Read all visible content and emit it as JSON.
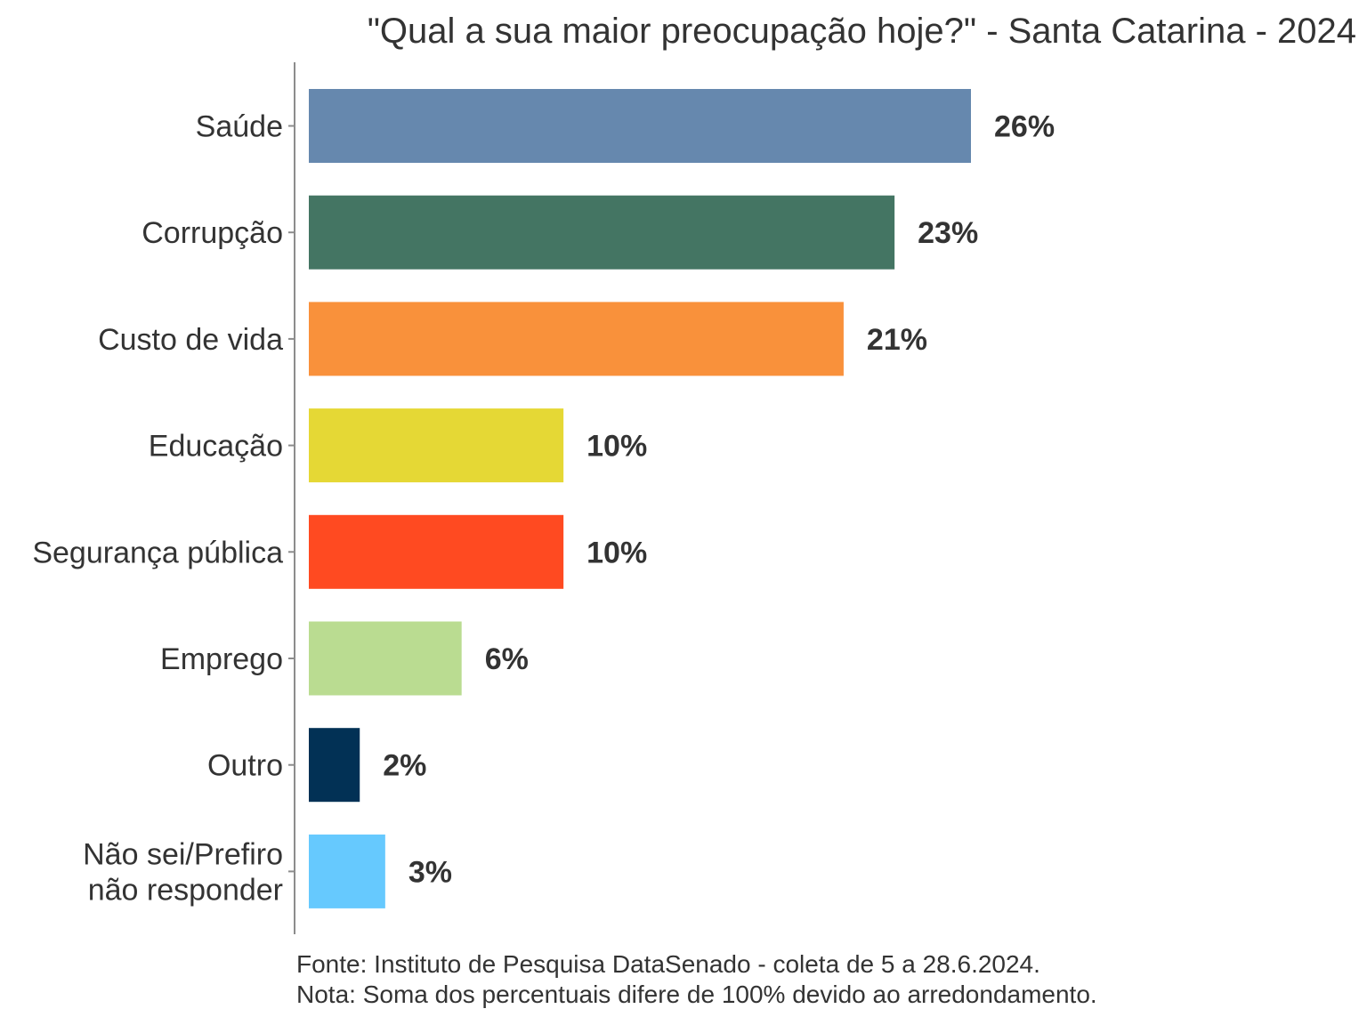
{
  "chart_data": {
    "type": "bar",
    "orientation": "horizontal",
    "title": "\"Qual a sua maior preocupação hoje?\" - Santa Catarina - 2024",
    "xlabel": "",
    "ylabel": "",
    "xlim": [
      0,
      26
    ],
    "grid": false,
    "categories": [
      [
        "Saúde"
      ],
      [
        "Corrupção"
      ],
      [
        "Custo de vida"
      ],
      [
        "Educação"
      ],
      [
        "Segurança pública"
      ],
      [
        "Emprego"
      ],
      [
        "Outro"
      ],
      [
        "Não sei/Prefiro",
        "não responder"
      ]
    ],
    "values": [
      26,
      23,
      21,
      10,
      10,
      6,
      2,
      3
    ],
    "labels": [
      "26%",
      "23%",
      "21%",
      "10%",
      "10%",
      "6%",
      "2%",
      "3%"
    ],
    "colors": [
      "#6688ae",
      "#447563",
      "#f9913b",
      "#e5d835",
      "#ff4a21",
      "#badc91",
      "#023155",
      "#66c9fe"
    ]
  },
  "caption": {
    "source": "Fonte: Instituto de Pesquisa DataSenado - coleta de 5 a 28.6.2024.",
    "note": "Nota: Soma dos percentuais difere de 100% devido ao arredondamento."
  }
}
